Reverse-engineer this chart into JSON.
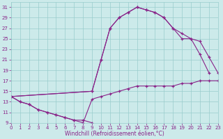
{
  "xlabel": "Windchill (Refroidissement éolien,°C)",
  "bg_color": "#cceaea",
  "grid_color": "#99cccc",
  "line_color": "#882288",
  "ylim": [
    9,
    32
  ],
  "xlim": [
    0,
    23
  ],
  "yticks": [
    9,
    11,
    13,
    15,
    17,
    19,
    21,
    23,
    25,
    27,
    29,
    31
  ],
  "xticks": [
    0,
    1,
    2,
    3,
    4,
    5,
    6,
    7,
    8,
    9,
    10,
    11,
    12,
    13,
    14,
    15,
    16,
    17,
    18,
    19,
    20,
    21,
    22,
    23
  ],
  "curves": [
    {
      "x": [
        0,
        1,
        2,
        3,
        4,
        5,
        6,
        7,
        8,
        9
      ],
      "y": [
        14,
        13,
        12.5,
        11.5,
        11,
        10.5,
        10,
        9.5,
        9.5,
        9
      ]
    },
    {
      "x": [
        0,
        1,
        2,
        3,
        4,
        5,
        6,
        7,
        8,
        9,
        10,
        11,
        12,
        13,
        14,
        15,
        16,
        17,
        18,
        19,
        20,
        21,
        22,
        23
      ],
      "y": [
        14,
        13,
        12.5,
        11.5,
        11,
        10.5,
        10,
        9.5,
        9,
        13.5,
        14,
        14.5,
        15,
        15.5,
        16,
        16,
        16,
        16,
        16,
        16.5,
        16.5,
        17,
        17,
        17
      ]
    },
    {
      "x": [
        0,
        9,
        10,
        11,
        12,
        13,
        14,
        15,
        16,
        17,
        18,
        19,
        20,
        21,
        22
      ],
      "y": [
        14,
        15,
        21,
        27,
        29,
        30,
        31,
        30.5,
        30,
        29,
        27,
        26,
        25,
        22,
        18.5
      ]
    },
    {
      "x": [
        0,
        9,
        10,
        11,
        12,
        13,
        14,
        15,
        16,
        17,
        18,
        19,
        20,
        21,
        22,
        23
      ],
      "y": [
        14,
        15,
        21,
        27,
        29,
        30,
        31,
        30.5,
        30,
        29,
        27,
        25,
        25,
        24.5,
        21.5,
        18.5
      ]
    }
  ]
}
